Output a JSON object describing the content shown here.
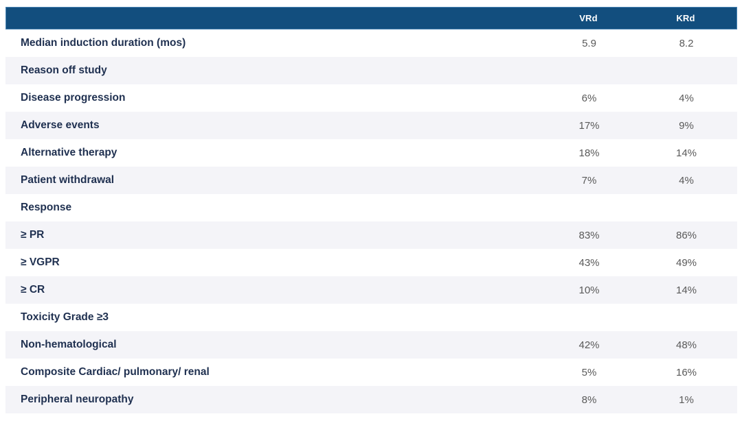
{
  "colors": {
    "header_bg": "#124E7E",
    "header_border": "#4A85B5",
    "header_text": "#FFFFFF",
    "row_alt_bg": "#F4F4F8",
    "row_bg": "#FFFFFF",
    "label_text": "#1F3050",
    "value_text": "#595959"
  },
  "chart_data": {
    "type": "table",
    "title": "",
    "columns": [
      "",
      "VRd",
      "KRd"
    ],
    "rows": [
      [
        "Median induction duration (mos)",
        "5.9",
        "8.2"
      ],
      [
        "Reason off study",
        "",
        ""
      ],
      [
        "Disease progression",
        "6%",
        "4%"
      ],
      [
        "Adverse events",
        "17%",
        "9%"
      ],
      [
        "Alternative therapy",
        "18%",
        "14%"
      ],
      [
        "Patient withdrawal",
        "7%",
        "4%"
      ],
      [
        "Response",
        "",
        ""
      ],
      [
        "≥ PR",
        "83%",
        "86%"
      ],
      [
        "≥ VGPR",
        "43%",
        "49%"
      ],
      [
        "≥ CR",
        "10%",
        "14%"
      ],
      [
        "Toxicity Grade ≥3",
        "",
        ""
      ],
      [
        "Non-hematological",
        "42%",
        "48%"
      ],
      [
        "Composite Cardiac/ pulmonary/ renal",
        "5%",
        "16%"
      ],
      [
        "Peripheral neuropathy",
        "8%",
        "1%"
      ]
    ],
    "section_header_row_indices": [
      1,
      6,
      10
    ],
    "layout": {
      "alternating_row_shading": true,
      "value_columns_alignment": "center",
      "label_column_alignment": "left"
    }
  }
}
